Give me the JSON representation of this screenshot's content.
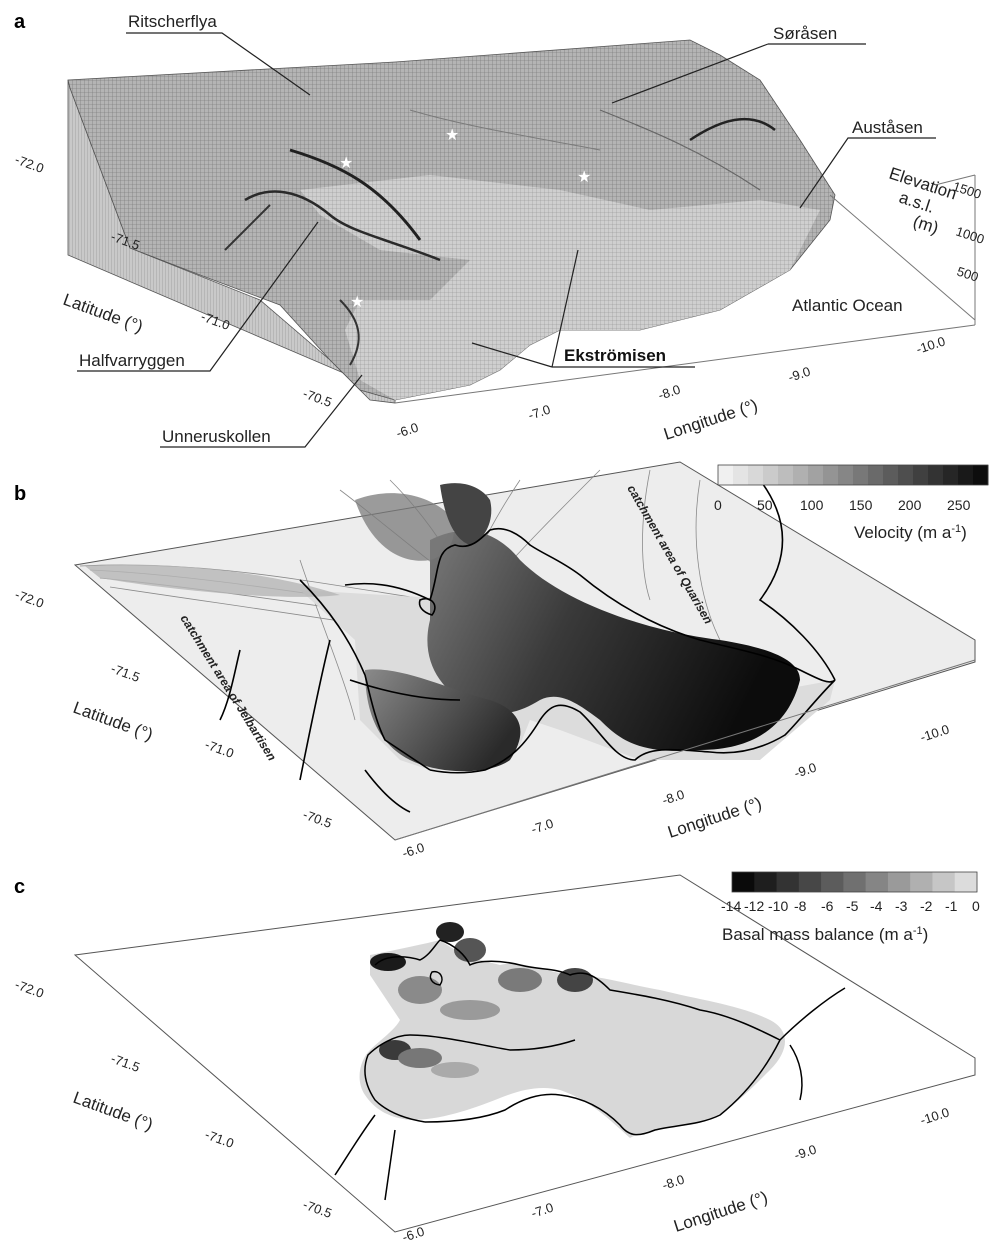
{
  "panels": {
    "a": {
      "label": "a",
      "places": {
        "ritscherflya": "Ritscherflya",
        "sorasen": "Søråsen",
        "austasen": "Auståsen",
        "halfvarryggen": "Halfvarryggen",
        "ekstromisen": "Ekströmisen",
        "unneruskollen": "Unneruskollen",
        "ocean": "Atlantic Ocean"
      },
      "elevation_axis": {
        "title_lines": [
          "Elevation",
          "a.s.l.",
          "(m)"
        ],
        "ticks": [
          "1500",
          "1000",
          "500"
        ]
      }
    },
    "b": {
      "label": "b",
      "catchment_quarisen": "catchment area of Quarisen",
      "catchment_jelbartisen": "catchment area of Jelbartisen",
      "colorbar": {
        "ticks": [
          "0",
          "50",
          "100",
          "150",
          "200",
          "250"
        ],
        "title": "Velocity (m a",
        "title_sup": "-1",
        "title_end": ")",
        "shades": [
          "#f0f0f0",
          "#e4e4e4",
          "#d8d8d8",
          "#cbcbcb",
          "#bdbdbd",
          "#b0b0b0",
          "#a2a2a2",
          "#949494",
          "#868686",
          "#787878",
          "#6a6a6a",
          "#5c5c5c",
          "#4e4e4e",
          "#404040",
          "#333333",
          "#262626",
          "#191919",
          "#0d0d0d"
        ]
      }
    },
    "c": {
      "label": "c",
      "colorbar": {
        "ticks": [
          "-14",
          "-12",
          "-10",
          "-8",
          "-6",
          "-5",
          "-4",
          "-3",
          "-2",
          "-1",
          "0"
        ],
        "title": "Basal mass balance (m a",
        "title_sup": "-1",
        "title_end": ")",
        "shades": [
          "#0a0a0a",
          "#1e1e1e",
          "#333333",
          "#474747",
          "#5c5c5c",
          "#707070",
          "#858585",
          "#9a9a9a",
          "#b0b0b0",
          "#c6c6c6",
          "#dcdcdc"
        ]
      }
    }
  },
  "axes": {
    "latitude_label": "Latitude (°)",
    "longitude_label": "Longitude (°)",
    "latitude_ticks": [
      "-72.0",
      "-71.5",
      "-71.0",
      "-70.5"
    ],
    "longitude_ticks": [
      "-6.0",
      "-7.0",
      "-8.0",
      "-9.0",
      "-10.0"
    ]
  },
  "colors": {
    "terrain": "#9a9a9a",
    "ice_shelf_light": "#d6d6d6",
    "coastline": "#000000"
  }
}
